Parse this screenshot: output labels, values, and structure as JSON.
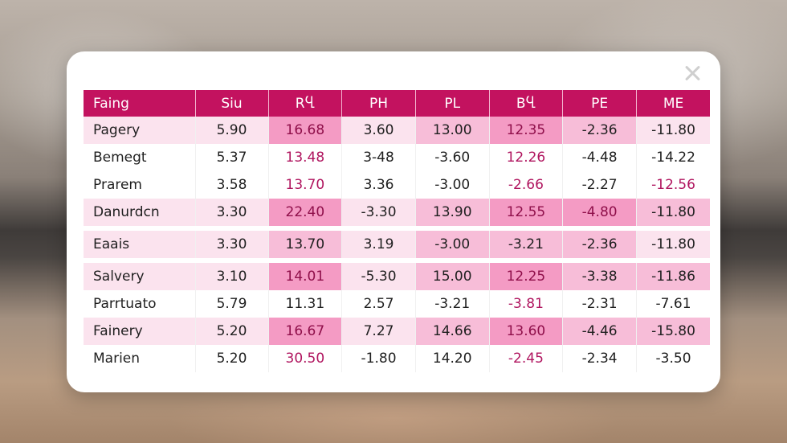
{
  "table": {
    "headers": [
      "Faing",
      "Siu",
      "RႡ",
      "PH",
      "PL",
      "BႡ",
      "PE",
      "ME"
    ],
    "rows": [
      {
        "cells": [
          "Pagery",
          "5.90",
          "16.68",
          "3.60",
          "13.00",
          "12.35",
          "-2.36",
          "-11.80"
        ]
      },
      {
        "cells": [
          "Bemegt",
          "5.37",
          "13.48",
          "3-48",
          "-3.60",
          "12.26",
          "-4.48",
          "-14.22"
        ]
      },
      {
        "cells": [
          "Prarem",
          "3.58",
          "13.70",
          "3.36",
          "-3.00",
          "-2.66",
          "-2.27",
          "-12.56"
        ]
      },
      {
        "cells": [
          "Danurdcn",
          "3.30",
          "22.40",
          "-3.30",
          "13.90",
          "12.55",
          "-4.80",
          "-11.80"
        ]
      },
      {
        "cells": [
          "Eaais",
          "3.30",
          "13.70",
          "3.19",
          "-3.00",
          "-3.21",
          "-2.36",
          "-11.80"
        ]
      },
      {
        "cells": [
          "Salvery",
          "3.10",
          "14.01",
          "-5.30",
          "15.00",
          "12.25",
          "-3.38",
          "-11.86"
        ]
      },
      {
        "cells": [
          "Parrtuato",
          "5.79",
          "11.31",
          "2.57",
          "-3.21",
          "-3.81",
          "-2.31",
          "-7.61"
        ]
      },
      {
        "cells": [
          "Fainery",
          "5.20",
          "16.67",
          "7.27",
          "14.66",
          "13.60",
          "-4.46",
          "-15.80"
        ]
      },
      {
        "cells": [
          "Marien",
          "5.20",
          "30.50",
          "-1.80",
          "14.20",
          "-2.45",
          "-2.34",
          "-3.50"
        ]
      }
    ]
  },
  "icons": {
    "close": "close-icon"
  },
  "colors": {
    "header_bg": "#c3125f",
    "highlight": "#f49bc4",
    "row_shade": "#fbe3ee"
  }
}
